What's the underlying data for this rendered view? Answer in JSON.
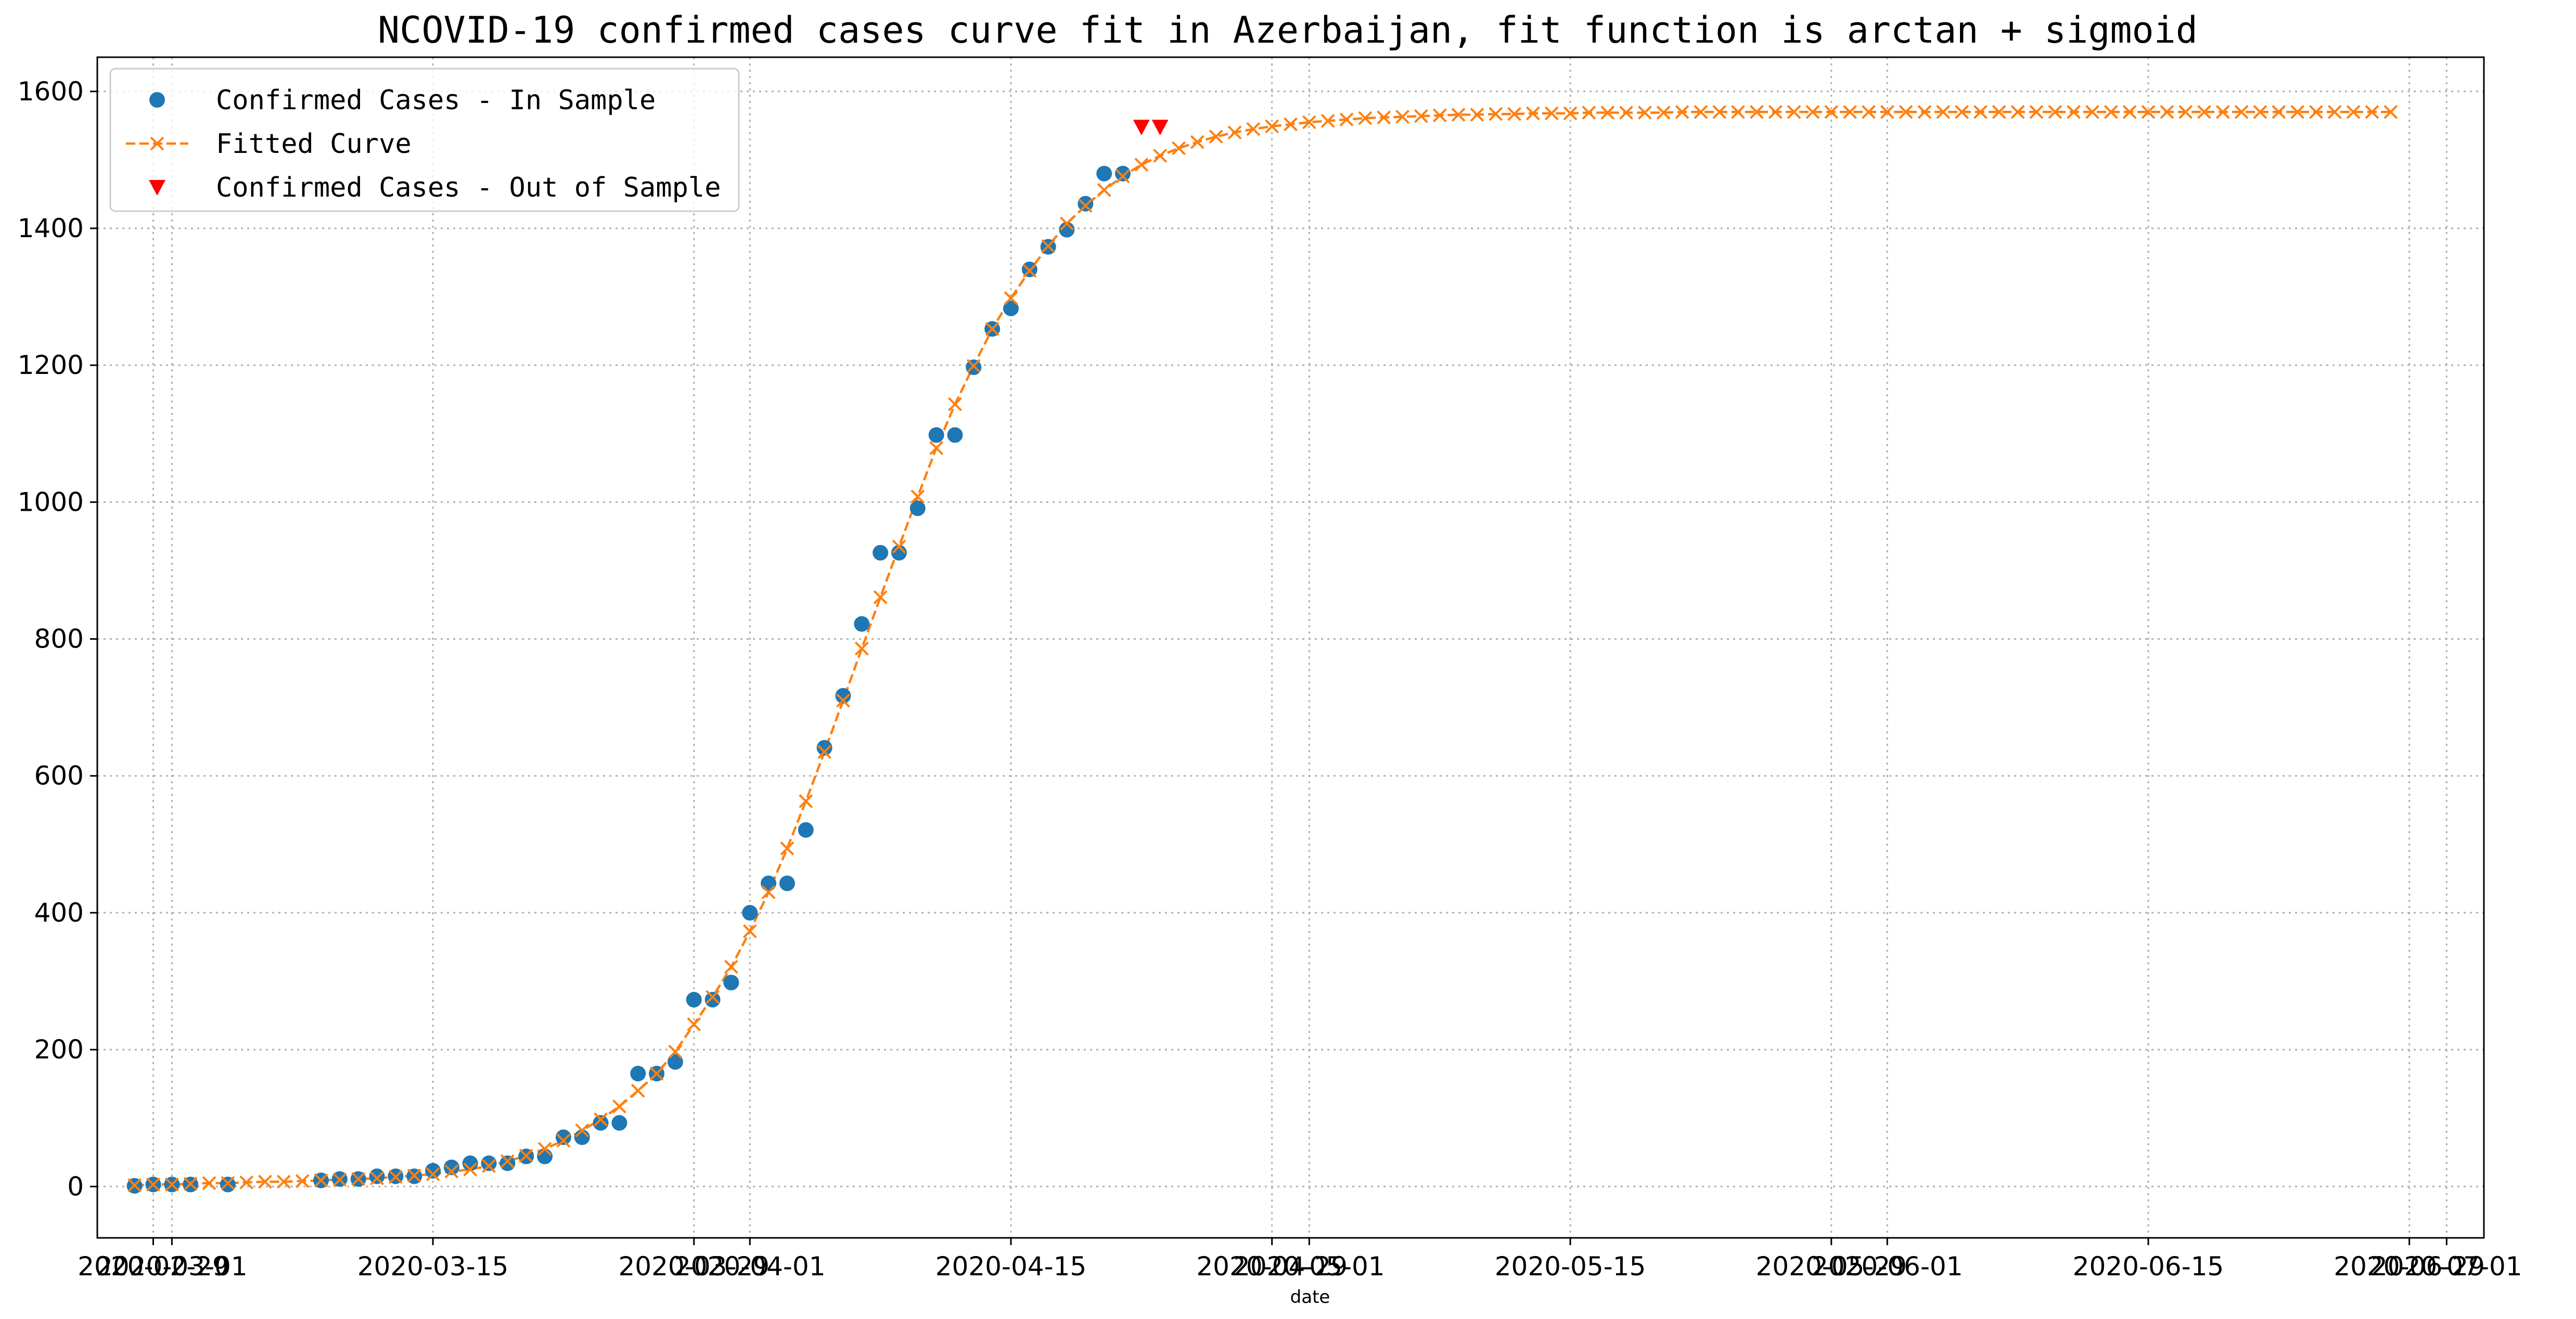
{
  "chart_data": {
    "type": "line",
    "title": "NCOVID-19 confirmed cases curve fit in Azerbaijan, fit function is arctan + sigmoid",
    "xlabel": "date",
    "ylabel": "",
    "grid": true,
    "legend_placement": "top-left",
    "xlim": [
      "2020-02-26",
      "2020-07-03"
    ],
    "ylim": [
      -75,
      1650
    ],
    "yticks": [
      0,
      200,
      400,
      600,
      800,
      1000,
      1200,
      1400,
      1600
    ],
    "xticks": [
      "2020-02-29",
      "2020-03-01",
      "2020-03-15",
      "2020-03-29",
      "2020-04-01",
      "2020-04-15",
      "2020-04-29",
      "2020-05-01",
      "2020-05-15",
      "2020-05-29",
      "2020-06-01",
      "2020-06-15",
      "2020-06-29",
      "2020-07-01"
    ],
    "series": [
      {
        "name": "Confirmed Cases - In Sample",
        "marker": "circle",
        "color": "#1f77b4",
        "points": [
          [
            "2020-02-28",
            1
          ],
          [
            "2020-02-29",
            3
          ],
          [
            "2020-03-01",
            3
          ],
          [
            "2020-03-02",
            3
          ],
          [
            "2020-03-04",
            3
          ],
          [
            "2020-03-09",
            9
          ],
          [
            "2020-03-10",
            11
          ],
          [
            "2020-03-11",
            11
          ],
          [
            "2020-03-12",
            15
          ],
          [
            "2020-03-13",
            15
          ],
          [
            "2020-03-14",
            15
          ],
          [
            "2020-03-15",
            23
          ],
          [
            "2020-03-16",
            28
          ],
          [
            "2020-03-17",
            34
          ],
          [
            "2020-03-18",
            34
          ],
          [
            "2020-03-19",
            34
          ],
          [
            "2020-03-20",
            44
          ],
          [
            "2020-03-21",
            44
          ],
          [
            "2020-03-22",
            72
          ],
          [
            "2020-03-23",
            72
          ],
          [
            "2020-03-24",
            93
          ],
          [
            "2020-03-25",
            93
          ],
          [
            "2020-03-26",
            165
          ],
          [
            "2020-03-27",
            165
          ],
          [
            "2020-03-28",
            182
          ],
          [
            "2020-03-29",
            273
          ],
          [
            "2020-03-30",
            273
          ],
          [
            "2020-03-31",
            298
          ],
          [
            "2020-04-01",
            400
          ],
          [
            "2020-04-02",
            443
          ],
          [
            "2020-04-03",
            443
          ],
          [
            "2020-04-04",
            521
          ],
          [
            "2020-04-05",
            641
          ],
          [
            "2020-04-06",
            717
          ],
          [
            "2020-04-07",
            822
          ],
          [
            "2020-04-08",
            926
          ],
          [
            "2020-04-09",
            926
          ],
          [
            "2020-04-10",
            991
          ],
          [
            "2020-04-11",
            1098
          ],
          [
            "2020-04-12",
            1098
          ],
          [
            "2020-04-13",
            1197
          ],
          [
            "2020-04-14",
            1253
          ],
          [
            "2020-04-15",
            1283
          ],
          [
            "2020-04-16",
            1340
          ],
          [
            "2020-04-17",
            1373
          ],
          [
            "2020-04-18",
            1398
          ],
          [
            "2020-04-19",
            1436
          ],
          [
            "2020-04-20",
            1480
          ],
          [
            "2020-04-21",
            1480
          ]
        ]
      },
      {
        "name": "Fitted Curve",
        "marker": "x",
        "line": "dashed",
        "color": "#ff7f0e",
        "points": [
          [
            "2020-02-28",
            2
          ],
          [
            "2020-02-29",
            3
          ],
          [
            "2020-03-01",
            3
          ],
          [
            "2020-03-02",
            4
          ],
          [
            "2020-03-03",
            5
          ],
          [
            "2020-03-04",
            5
          ],
          [
            "2020-03-05",
            6
          ],
          [
            "2020-03-06",
            7
          ],
          [
            "2020-03-07",
            7
          ],
          [
            "2020-03-08",
            8
          ],
          [
            "2020-03-09",
            9
          ],
          [
            "2020-03-10",
            10
          ],
          [
            "2020-03-11",
            11
          ],
          [
            "2020-03-12",
            12
          ],
          [
            "2020-03-13",
            14
          ],
          [
            "2020-03-14",
            16
          ],
          [
            "2020-03-15",
            18
          ],
          [
            "2020-03-16",
            22
          ],
          [
            "2020-03-17",
            25
          ],
          [
            "2020-03-18",
            30
          ],
          [
            "2020-03-19",
            37
          ],
          [
            "2020-03-20",
            45
          ],
          [
            "2020-03-21",
            55
          ],
          [
            "2020-03-22",
            67
          ],
          [
            "2020-03-23",
            82
          ],
          [
            "2020-03-24",
            98
          ],
          [
            "2020-03-25",
            117
          ],
          [
            "2020-03-26",
            140
          ],
          [
            "2020-03-27",
            165
          ],
          [
            "2020-03-28",
            197
          ],
          [
            "2020-03-29",
            237
          ],
          [
            "2020-03-30",
            277
          ],
          [
            "2020-03-31",
            321
          ],
          [
            "2020-04-01",
            373
          ],
          [
            "2020-04-02",
            430
          ],
          [
            "2020-04-03",
            494
          ],
          [
            "2020-04-04",
            563
          ],
          [
            "2020-04-05",
            635
          ],
          [
            "2020-04-06",
            710
          ],
          [
            "2020-04-07",
            786
          ],
          [
            "2020-04-08",
            861
          ],
          [
            "2020-04-09",
            935
          ],
          [
            "2020-04-10",
            1008
          ],
          [
            "2020-04-11",
            1079
          ],
          [
            "2020-04-12",
            1143
          ],
          [
            "2020-04-13",
            1199
          ],
          [
            "2020-04-14",
            1253
          ],
          [
            "2020-04-15",
            1298
          ],
          [
            "2020-04-16",
            1338
          ],
          [
            "2020-04-17",
            1374
          ],
          [
            "2020-04-18",
            1407
          ],
          [
            "2020-04-19",
            1433
          ],
          [
            "2020-04-20",
            1456
          ],
          [
            "2020-04-21",
            1476
          ],
          [
            "2020-04-22",
            1493
          ],
          [
            "2020-04-23",
            1506
          ],
          [
            "2020-04-24",
            1517
          ],
          [
            "2020-04-25",
            1526
          ],
          [
            "2020-04-26",
            1534
          ],
          [
            "2020-04-27",
            1540
          ],
          [
            "2020-04-28",
            1545
          ],
          [
            "2020-04-29",
            1549
          ],
          [
            "2020-04-30",
            1552
          ],
          [
            "2020-05-01",
            1555
          ],
          [
            "2020-05-02",
            1557
          ],
          [
            "2020-05-03",
            1559
          ],
          [
            "2020-05-04",
            1561
          ],
          [
            "2020-05-05",
            1562
          ],
          [
            "2020-05-06",
            1563
          ],
          [
            "2020-05-07",
            1564
          ],
          [
            "2020-05-08",
            1565
          ],
          [
            "2020-05-09",
            1566
          ],
          [
            "2020-05-10",
            1566
          ],
          [
            "2020-05-11",
            1567
          ],
          [
            "2020-05-12",
            1567
          ],
          [
            "2020-05-13",
            1568
          ],
          [
            "2020-05-14",
            1568
          ],
          [
            "2020-05-15",
            1568
          ],
          [
            "2020-05-16",
            1569
          ],
          [
            "2020-05-17",
            1569
          ],
          [
            "2020-05-18",
            1569
          ],
          [
            "2020-05-19",
            1569
          ],
          [
            "2020-05-20",
            1569
          ],
          [
            "2020-05-21",
            1570
          ],
          [
            "2020-05-22",
            1570
          ],
          [
            "2020-05-23",
            1570
          ],
          [
            "2020-05-24",
            1570
          ],
          [
            "2020-05-25",
            1570
          ],
          [
            "2020-05-26",
            1570
          ],
          [
            "2020-05-27",
            1570
          ],
          [
            "2020-05-28",
            1570
          ],
          [
            "2020-05-29",
            1570
          ],
          [
            "2020-05-30",
            1570
          ],
          [
            "2020-05-31",
            1570
          ],
          [
            "2020-06-01",
            1570
          ],
          [
            "2020-06-02",
            1570
          ],
          [
            "2020-06-03",
            1570
          ],
          [
            "2020-06-04",
            1570
          ],
          [
            "2020-06-05",
            1570
          ],
          [
            "2020-06-06",
            1570
          ],
          [
            "2020-06-07",
            1570
          ],
          [
            "2020-06-08",
            1570
          ],
          [
            "2020-06-09",
            1570
          ],
          [
            "2020-06-10",
            1570
          ],
          [
            "2020-06-11",
            1570
          ],
          [
            "2020-06-12",
            1570
          ],
          [
            "2020-06-13",
            1570
          ],
          [
            "2020-06-14",
            1570
          ],
          [
            "2020-06-15",
            1570
          ],
          [
            "2020-06-16",
            1570
          ],
          [
            "2020-06-17",
            1570
          ],
          [
            "2020-06-18",
            1570
          ],
          [
            "2020-06-19",
            1570
          ],
          [
            "2020-06-20",
            1570
          ],
          [
            "2020-06-21",
            1570
          ],
          [
            "2020-06-22",
            1570
          ],
          [
            "2020-06-23",
            1570
          ],
          [
            "2020-06-24",
            1570
          ],
          [
            "2020-06-25",
            1570
          ],
          [
            "2020-06-26",
            1570
          ],
          [
            "2020-06-27",
            1570
          ],
          [
            "2020-06-28",
            1570
          ]
        ]
      },
      {
        "name": "Confirmed Cases - Out of Sample",
        "marker": "triangle-down",
        "color": "#ff0000",
        "points": [
          [
            "2020-04-22",
            1548
          ],
          [
            "2020-04-23",
            1548
          ]
        ]
      }
    ]
  }
}
